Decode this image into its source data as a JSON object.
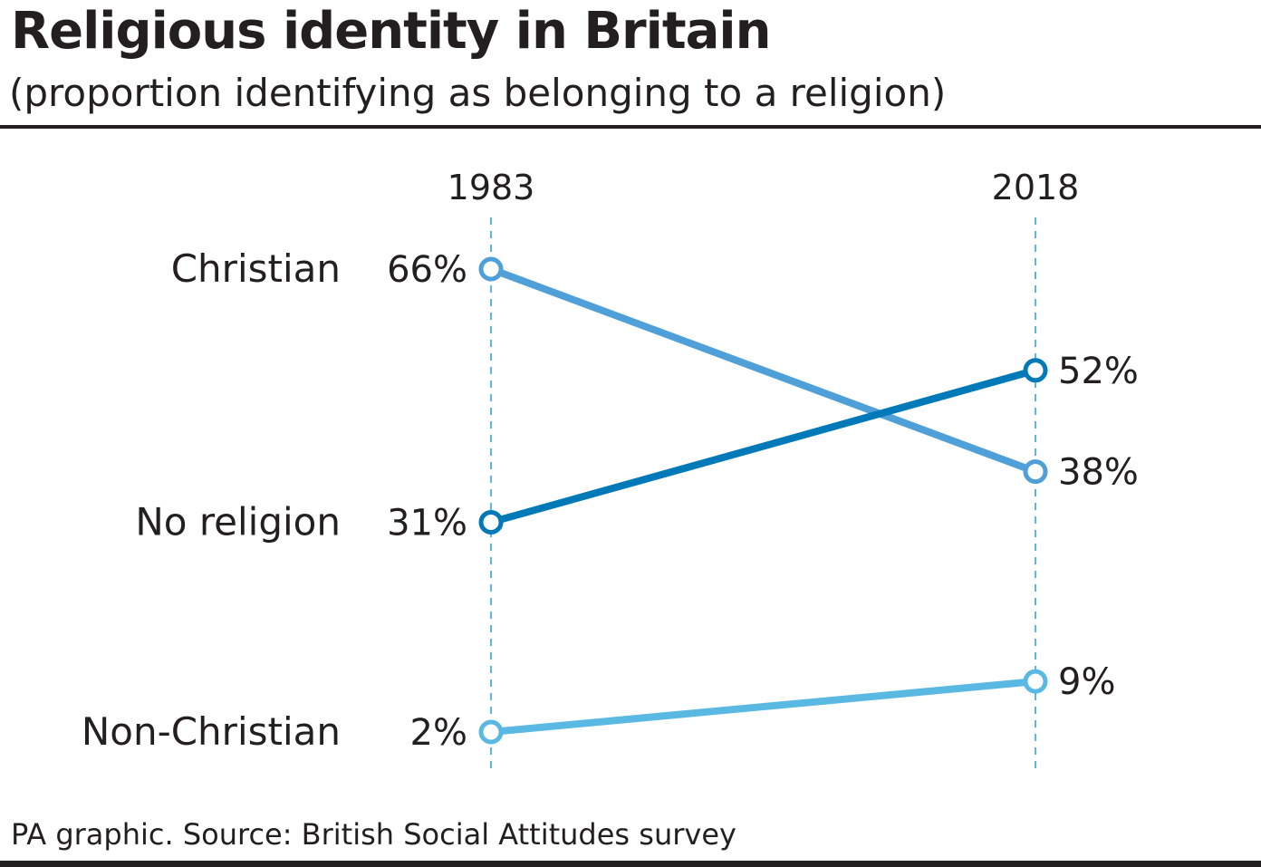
{
  "header": {
    "title": "Religious identity in Britain",
    "subtitle": "(proportion identifying as belonging to a religion)"
  },
  "footer": {
    "source": "PA graphic. Source: British Social Attitudes survey"
  },
  "chart_data": {
    "type": "line",
    "title": "Religious identity in Britain",
    "subtitle": "(proportion identifying as belonging to a religion)",
    "x": [
      "1983",
      "2018"
    ],
    "y_unit": "%",
    "ylim": [
      0,
      70
    ],
    "grid": false,
    "series": [
      {
        "name": "Christian",
        "values": [
          66,
          38
        ],
        "labels": [
          "66%",
          "38%"
        ],
        "color": "#4fa0d8"
      },
      {
        "name": "No religion",
        "values": [
          31,
          52
        ],
        "labels": [
          "31%",
          "52%"
        ],
        "color": "#0079b8"
      },
      {
        "name": "Non-Christian",
        "values": [
          2,
          9
        ],
        "labels": [
          "2%",
          "9%"
        ],
        "color": "#5ab9e3"
      }
    ]
  }
}
